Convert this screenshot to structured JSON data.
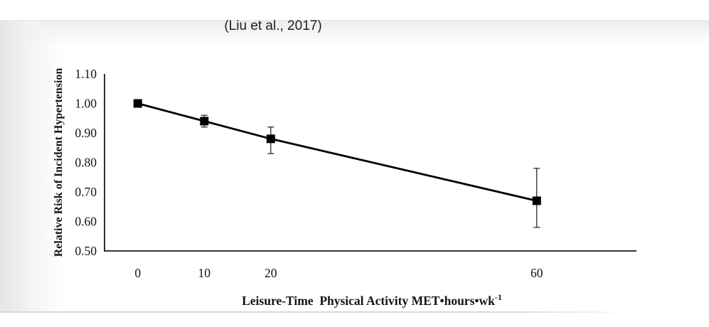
{
  "citation": "(Liu et al., 2017)",
  "chart_data": {
    "type": "line",
    "title": "",
    "xlabel": "Leisure-Time  Physical Activity MET•hours•wk",
    "xlabel_superscript": "-1",
    "ylabel": "Relative Risk of Incident Hypertension",
    "x": [
      0,
      10,
      20,
      60
    ],
    "series": [
      {
        "name": "Relative Risk of Incident Hypertension",
        "values": [
          1.0,
          0.94,
          0.88,
          0.67
        ],
        "ci_low": [
          null,
          0.92,
          0.83,
          0.58
        ],
        "ci_high": [
          null,
          0.96,
          0.92,
          0.78
        ]
      }
    ],
    "x_ticks": [
      0,
      10,
      20,
      60
    ],
    "y_ticks": [
      1.1,
      1.0,
      0.9,
      0.8,
      0.7,
      0.6,
      0.5
    ],
    "xlim": [
      -5,
      75
    ],
    "ylim": [
      0.5,
      1.1
    ],
    "grid": false,
    "legend": "none",
    "marker": "square",
    "colors": {
      "line": "#000000",
      "marker": "#000000",
      "error_bar": "#2b2b2b",
      "axis": "#1a1a1a",
      "text": "#141414"
    }
  }
}
